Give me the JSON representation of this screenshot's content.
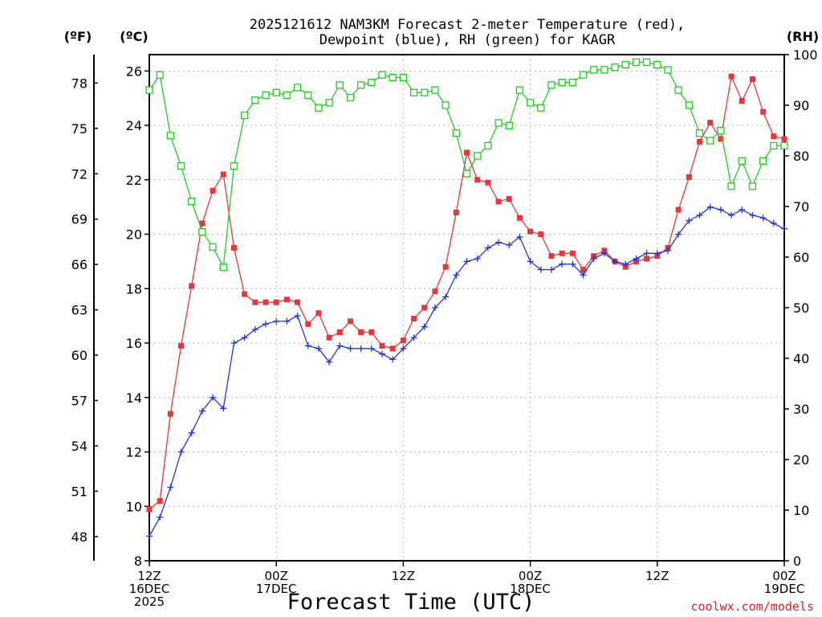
{
  "chart_data": {
    "type": "line",
    "title_line1": "2025121612 NAM3KM Forecast 2-meter Temperature (red),",
    "title_line2": "Dewpoint (blue), RH (green) for KAGR",
    "xlabel": "Forecast Time (UTC)",
    "credit": "coolwx.com/models",
    "units": {
      "fahrenheit": "(ºF)",
      "celsius": "(ºC)",
      "rh": "(RH)"
    },
    "x_forecast_hours": [
      0,
      1,
      2,
      3,
      4,
      5,
      6,
      7,
      8,
      9,
      10,
      11,
      12,
      13,
      14,
      15,
      16,
      17,
      18,
      19,
      20,
      21,
      22,
      23,
      24,
      25,
      26,
      27,
      28,
      29,
      30,
      31,
      32,
      33,
      34,
      35,
      36,
      37,
      38,
      39,
      40,
      41,
      42,
      43,
      44,
      45,
      46,
      47,
      48,
      49,
      50,
      51,
      52,
      53,
      54,
      55,
      56,
      57,
      58,
      59,
      60
    ],
    "xlim": [
      0,
      60
    ],
    "x_ticks": [
      {
        "hour": 0,
        "lines": [
          "12Z",
          "16DEC",
          "2025"
        ]
      },
      {
        "hour": 12,
        "lines": [
          "00Z",
          "17DEC"
        ]
      },
      {
        "hour": 24,
        "lines": [
          "12Z"
        ]
      },
      {
        "hour": 36,
        "lines": [
          "00Z",
          "18DEC"
        ]
      },
      {
        "hour": 48,
        "lines": [
          "12Z"
        ]
      },
      {
        "hour": 60,
        "lines": [
          "00Z",
          "19DEC"
        ]
      }
    ],
    "y_celsius": {
      "ylim": [
        8,
        26.6
      ],
      "ticks": [
        8,
        10,
        12,
        14,
        16,
        18,
        20,
        22,
        24,
        26
      ]
    },
    "y_fahrenheit": {
      "ticks": [
        48,
        51,
        54,
        57,
        60,
        63,
        66,
        69,
        72,
        75,
        78
      ]
    },
    "y_rh": {
      "ylim": [
        0,
        100
      ],
      "ticks": [
        0,
        10,
        20,
        30,
        40,
        50,
        60,
        70,
        80,
        90,
        100
      ]
    },
    "series": [
      {
        "name": "Temperature",
        "axis": "celsius",
        "color": "#e8353b",
        "marker": "filled-square",
        "values": [
          9.9,
          10.2,
          13.4,
          15.9,
          18.1,
          20.4,
          21.6,
          22.2,
          19.5,
          17.8,
          17.5,
          17.5,
          17.5,
          17.6,
          17.5,
          16.7,
          17.1,
          16.2,
          16.4,
          16.8,
          16.4,
          16.4,
          15.9,
          15.8,
          16.1,
          16.9,
          17.3,
          17.9,
          18.8,
          20.8,
          23.0,
          22.0,
          21.9,
          21.2,
          21.3,
          20.6,
          20.1,
          20.0,
          19.2,
          19.3,
          19.3,
          18.7,
          19.2,
          19.4,
          19.0,
          18.8,
          19.0,
          19.1,
          19.2,
          19.5,
          20.9,
          22.1,
          23.4,
          24.1,
          23.5,
          25.8,
          24.9,
          25.7,
          24.5,
          23.6,
          23.5
        ]
      },
      {
        "name": "Dewpoint",
        "axis": "celsius",
        "color": "#2233dd",
        "marker": "plus",
        "values": [
          8.9,
          9.6,
          10.7,
          12.0,
          12.7,
          13.5,
          14.0,
          13.6,
          16.0,
          16.2,
          16.5,
          16.7,
          16.8,
          16.8,
          17.0,
          15.9,
          15.8,
          15.3,
          15.9,
          15.8,
          15.8,
          15.8,
          15.6,
          15.4,
          15.8,
          16.2,
          16.6,
          17.3,
          17.7,
          18.5,
          19.0,
          19.1,
          19.5,
          19.7,
          19.6,
          19.9,
          19.0,
          18.7,
          18.7,
          18.9,
          18.9,
          18.5,
          19.1,
          19.3,
          19.0,
          18.9,
          19.1,
          19.3,
          19.3,
          19.4,
          20.0,
          20.5,
          20.7,
          21.0,
          20.9,
          20.7,
          20.9,
          20.7,
          20.6,
          20.4,
          20.2
        ]
      },
      {
        "name": "RH",
        "axis": "rh",
        "color": "#22cc22",
        "marker": "open-square",
        "values": [
          93,
          96,
          84,
          78,
          71,
          65,
          62,
          58,
          78,
          88,
          91,
          92,
          92.5,
          92,
          93.5,
          92,
          89.5,
          90.5,
          94,
          91.5,
          94,
          94.5,
          96,
          95.5,
          95.5,
          92.5,
          92.5,
          93,
          90,
          84.5,
          76.5,
          80,
          82,
          86.5,
          86,
          93,
          90.5,
          89.5,
          94,
          94.5,
          94.5,
          96,
          97,
          97,
          97.5,
          98,
          98.5,
          98.5,
          98,
          97,
          93,
          90,
          84.5,
          83,
          85,
          74,
          79,
          74,
          79,
          82,
          82
        ]
      }
    ]
  }
}
